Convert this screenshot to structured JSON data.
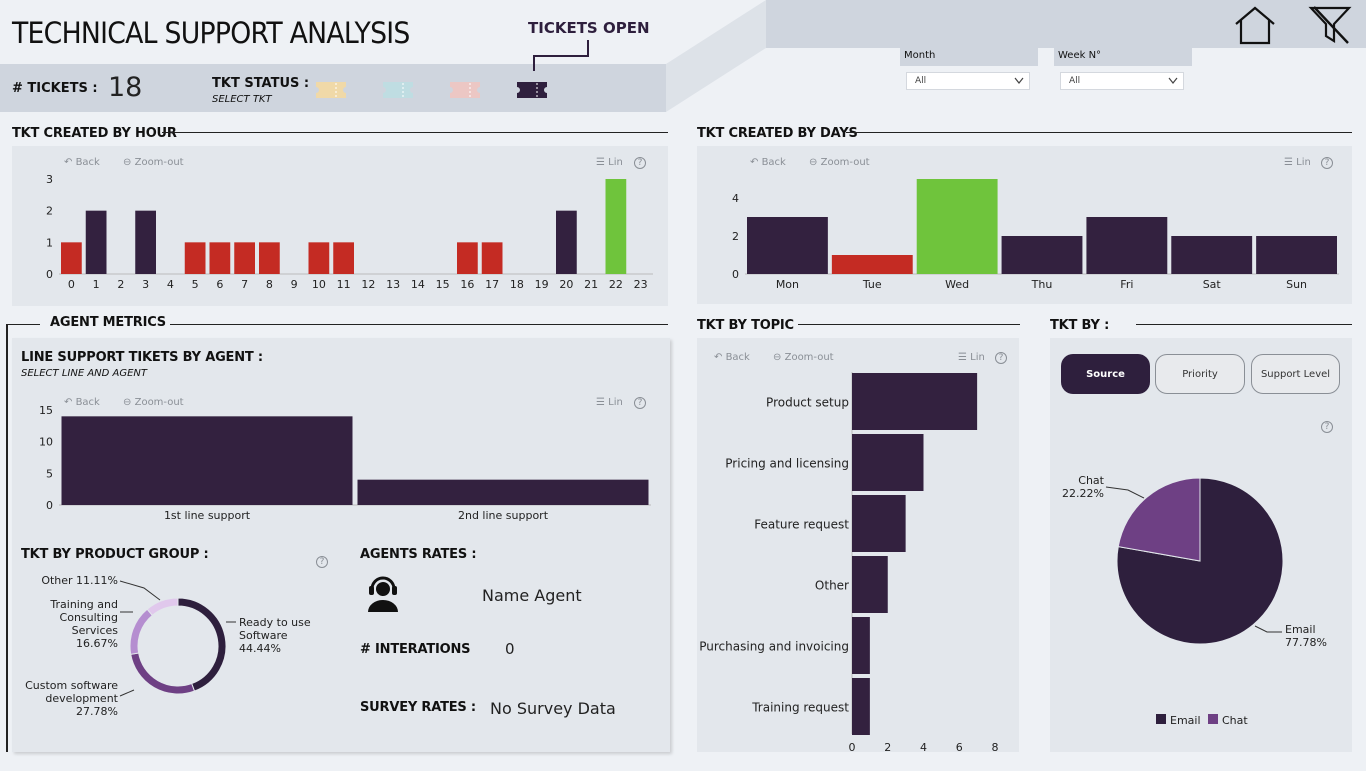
{
  "title": "TECHNICAL SUPPORT ANALYSIS",
  "tickets_open_label": "TICKETS OPEN",
  "kpi": {
    "tickets_label": "# TICKETS :",
    "tickets_value": "18"
  },
  "status": {
    "label": "TKT STATUS :",
    "sublabel": "SELECT TKT",
    "colors": [
      "#f0d9a8",
      "#bfdde2",
      "#ecc7c4",
      "#2e1f3d"
    ]
  },
  "filters": {
    "month": {
      "label": "Month",
      "value": "All"
    },
    "week": {
      "label": "Week N°",
      "value": "All"
    }
  },
  "toolbar": {
    "back": "Back",
    "zoom": "Zoom-out",
    "lin": "Lin",
    "help": "?"
  },
  "hour_chart": {
    "title": "TKT CREATED BY HOUR",
    "chart_data": {
      "type": "bar",
      "categories": [
        "0",
        "1",
        "2",
        "3",
        "4",
        "5",
        "6",
        "7",
        "8",
        "9",
        "10",
        "11",
        "12",
        "13",
        "14",
        "15",
        "16",
        "17",
        "18",
        "19",
        "20",
        "21",
        "22",
        "23"
      ],
      "values": [
        1,
        2,
        0,
        2,
        0,
        1,
        1,
        1,
        1,
        0,
        1,
        1,
        0,
        0,
        0,
        0,
        1,
        1,
        0,
        0,
        2,
        0,
        3,
        0
      ],
      "colors": [
        "red",
        "dark",
        "dark",
        "dark",
        "dark",
        "red",
        "red",
        "red",
        "red",
        "dark",
        "red",
        "red",
        "dark",
        "dark",
        "dark",
        "dark",
        "red",
        "red",
        "dark",
        "dark",
        "dark",
        "dark",
        "green",
        "dark"
      ],
      "yticks": [
        "0",
        "1",
        "2",
        "3"
      ],
      "ylim": [
        0,
        3
      ]
    }
  },
  "days_chart": {
    "title": "TKT CREATED BY DAYS",
    "chart_data": {
      "type": "bar",
      "categories": [
        "Mon",
        "Tue",
        "Wed",
        "Thu",
        "Fri",
        "Sat",
        "Sun"
      ],
      "values": [
        3,
        1,
        5,
        2,
        3,
        2,
        2
      ],
      "colors": [
        "dark",
        "red",
        "green",
        "dark",
        "dark",
        "dark",
        "dark"
      ],
      "yticks": [
        "0",
        "2",
        "4"
      ],
      "ylim": [
        0,
        5
      ]
    }
  },
  "agent_metrics": {
    "title": "AGENT METRICS",
    "line_title": "LINE SUPPORT TIKETS BY AGENT :",
    "line_sub": "SELECT LINE AND AGENT",
    "line_chart": {
      "type": "bar",
      "categories": [
        "1st line support",
        "2nd line support"
      ],
      "values": [
        14,
        4
      ],
      "yticks": [
        "0",
        "5",
        "10",
        "15"
      ],
      "ylim": [
        0,
        15
      ]
    },
    "product_title": "TKT BY PRODUCT GROUP :",
    "product_chart": {
      "type": "pie",
      "labels": [
        "Ready to use Software",
        "Custom software development",
        "Training and Consulting Services",
        "Other"
      ],
      "values": [
        44.44,
        27.78,
        16.67,
        11.11
      ],
      "colors": [
        "#2e1f3d",
        "#6e4084",
        "#b58ed0",
        "#e0c8ec"
      ],
      "label_texts": [
        [
          "Ready to use",
          "Software",
          "44.44%"
        ],
        [
          "Custom software",
          "development",
          "27.78%"
        ],
        [
          "Training and",
          "Consulting",
          "Services",
          "16.67%"
        ],
        [
          "Other 11.11%"
        ]
      ]
    },
    "rates_title": "AGENTS RATES :",
    "agent_name": "Name Agent",
    "interactions_label": "# INTERATIONS",
    "interactions_value": "0",
    "survey_label": "SURVEY RATES :",
    "survey_value": "No Survey Data"
  },
  "topic_chart": {
    "title": "TKT BY TOPIC",
    "chart_data": {
      "type": "bar",
      "orientation": "horizontal",
      "categories": [
        "Product setup",
        "Pricing and licensing",
        "Feature request",
        "Other",
        "Purchasing and invoicing",
        "Training request"
      ],
      "values": [
        7,
        4,
        3,
        2,
        1,
        1
      ],
      "xticks": [
        "0",
        "2",
        "4",
        "6",
        "8"
      ],
      "xlim": [
        0,
        8
      ]
    }
  },
  "tkt_by": {
    "title": "TKT BY :",
    "buttons": [
      "Source",
      "Priority",
      "Support Level"
    ],
    "chart_data": {
      "type": "pie",
      "labels": [
        "Email",
        "Chat"
      ],
      "values": [
        77.78,
        22.22
      ],
      "colors": [
        "#2e1f3d",
        "#6e4084"
      ],
      "label_texts": [
        [
          "Email",
          "77.78%"
        ],
        [
          "Chat",
          "22.22%"
        ]
      ],
      "legend": "bottom"
    }
  }
}
